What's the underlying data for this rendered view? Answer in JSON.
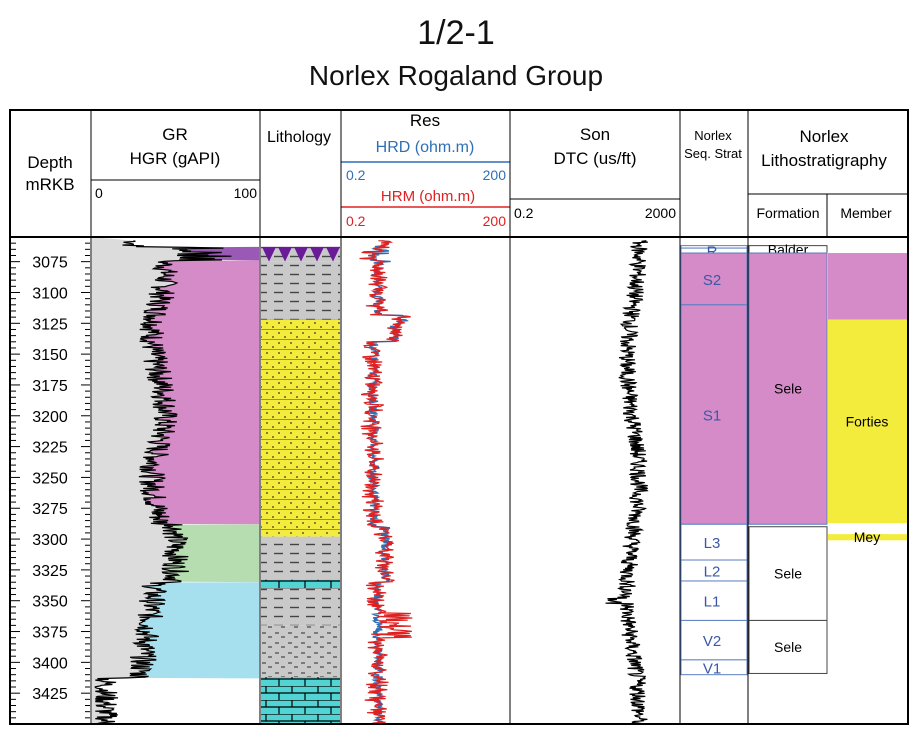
{
  "title": "1/2-1",
  "subtitle": "Norlex Rogaland Group",
  "headers": {
    "depth": [
      "Depth",
      "mRKB"
    ],
    "gr": [
      "GR",
      "HGR (gAPI)"
    ],
    "gr_scale": [
      "0",
      "100"
    ],
    "lithology": "Lithology",
    "res": "Res",
    "hrd": "HRD (ohm.m)",
    "hrd_scale": [
      "0.2",
      "200"
    ],
    "hrm": "HRM (ohm.m)",
    "hrm_scale": [
      "0.2",
      "200"
    ],
    "son": [
      "Son",
      "DTC (us/ft)"
    ],
    "son_scale": [
      "0.2",
      "2000"
    ],
    "seq": [
      "Norlex",
      "Seq. Strat"
    ],
    "litho": [
      "Norlex",
      "Lithostratigraphy"
    ],
    "formation": "Formation",
    "member": "Member"
  },
  "colors": {
    "purple": "#9b59b6",
    "pink": "#d58bc8",
    "green": "#b6ddb0",
    "cyan": "#a6dfee",
    "grey": "#dcdcdc",
    "yellow": "#f4ec3c",
    "blue_curve": "#2f6fb5",
    "red_curve": "#e02020"
  },
  "chart_data": {
    "type": "well-log",
    "y_axis": {
      "label": "Depth mRKB",
      "range": [
        3055,
        3450
      ],
      "ticks": [
        3075,
        3100,
        3125,
        3150,
        3175,
        3200,
        3225,
        3250,
        3275,
        3300,
        3325,
        3350,
        3375,
        3400,
        3425
      ]
    },
    "gr_zones": [
      {
        "top": 3063,
        "base": 3074,
        "color": "purple"
      },
      {
        "top": 3074,
        "base": 3288,
        "color": "pink"
      },
      {
        "top": 3288,
        "base": 3335,
        "color": "green"
      },
      {
        "top": 3335,
        "base": 3413,
        "color": "cyan"
      }
    ],
    "lithology": [
      {
        "top": 3063,
        "base": 3075,
        "type": "tuff"
      },
      {
        "top": 3075,
        "base": 3122,
        "type": "shale"
      },
      {
        "top": 3122,
        "base": 3298,
        "type": "sandstone"
      },
      {
        "top": 3298,
        "base": 3333,
        "type": "shale"
      },
      {
        "top": 3333,
        "base": 3340,
        "type": "limestone"
      },
      {
        "top": 3340,
        "base": 3370,
        "type": "shale"
      },
      {
        "top": 3370,
        "base": 3412,
        "type": "marl"
      },
      {
        "top": 3412,
        "base": 3450,
        "type": "limestone"
      }
    ],
    "seq_strat": [
      {
        "label": "",
        "top": 3062,
        "base": 3064
      },
      {
        "label": "R",
        "top": 3064,
        "base": 3068
      },
      {
        "label": "S2",
        "top": 3068,
        "base": 3110
      },
      {
        "label": "S1",
        "top": 3110,
        "base": 3288
      },
      {
        "label": "L3",
        "top": 3288,
        "base": 3317
      },
      {
        "label": "L2",
        "top": 3317,
        "base": 3334
      },
      {
        "label": "L1",
        "top": 3334,
        "base": 3366
      },
      {
        "label": "V2",
        "top": 3366,
        "base": 3398
      },
      {
        "label": "V1",
        "top": 3398,
        "base": 3410
      }
    ],
    "formations": [
      {
        "label": "Balder",
        "top": 3062,
        "base": 3068,
        "fill": false
      },
      {
        "label": "Sele",
        "top": 3068,
        "base": 3288,
        "fill": true
      },
      {
        "label": "Sele",
        "top": 3290,
        "base": 3366,
        "fill": false
      },
      {
        "label": "Sele",
        "top": 3366,
        "base": 3409,
        "fill": false
      }
    ],
    "members": [
      {
        "label": "",
        "top": 3068,
        "base": 3122,
        "color": "pink"
      },
      {
        "label": "Forties",
        "top": 3122,
        "base": 3287,
        "color": "yellow"
      },
      {
        "label": "Mey",
        "top": 3296,
        "base": 3301,
        "color": "yellow"
      }
    ]
  }
}
